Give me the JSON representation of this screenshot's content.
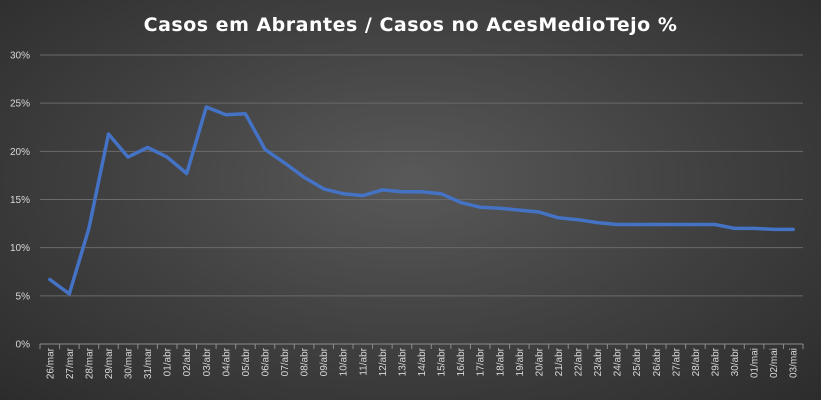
{
  "chart_data": {
    "type": "line",
    "title": "Casos em Abrantes / Casos no AcesMedioTejo %",
    "xlabel": "",
    "ylabel": "",
    "ylim": [
      0,
      30
    ],
    "yticks": [
      "0%",
      "5%",
      "10%",
      "15%",
      "20%",
      "25%",
      "30%"
    ],
    "ytick_values": [
      0,
      5,
      10,
      15,
      20,
      25,
      30
    ],
    "grid": true,
    "legend": "none",
    "categories": [
      "26/mar",
      "27/mar",
      "28/mar",
      "29/mar",
      "30/mar",
      "31/mar",
      "01/abr",
      "02/abr",
      "03/abr",
      "04/abr",
      "05/abr",
      "06/abr",
      "07/abr",
      "08/abr",
      "09/abr",
      "10/abr",
      "11/abr",
      "12/abr",
      "13/abr",
      "14/abr",
      "15/abr",
      "16/abr",
      "17/abr",
      "18/abr",
      "19/abr",
      "20/abr",
      "21/abr",
      "22/abr",
      "23/abr",
      "24/abr",
      "25/abr",
      "26/abr",
      "27/abr",
      "28/abr",
      "29/abr",
      "30/abr",
      "01/mai",
      "02/mai",
      "03/mai"
    ],
    "series": [
      {
        "values": [
          6.7,
          5.2,
          12.0,
          21.8,
          19.4,
          20.4,
          19.4,
          17.7,
          24.6,
          23.8,
          23.9,
          20.2,
          18.8,
          17.3,
          16.1,
          15.6,
          15.4,
          16.0,
          15.8,
          15.8,
          15.6,
          14.7,
          14.2,
          14.1,
          13.9,
          13.7,
          13.1,
          12.9,
          12.6,
          12.4,
          12.4,
          12.4,
          12.4,
          12.4,
          12.4,
          12.0,
          12.0,
          11.9,
          11.9
        ],
        "color": "#4472c4"
      }
    ]
  }
}
